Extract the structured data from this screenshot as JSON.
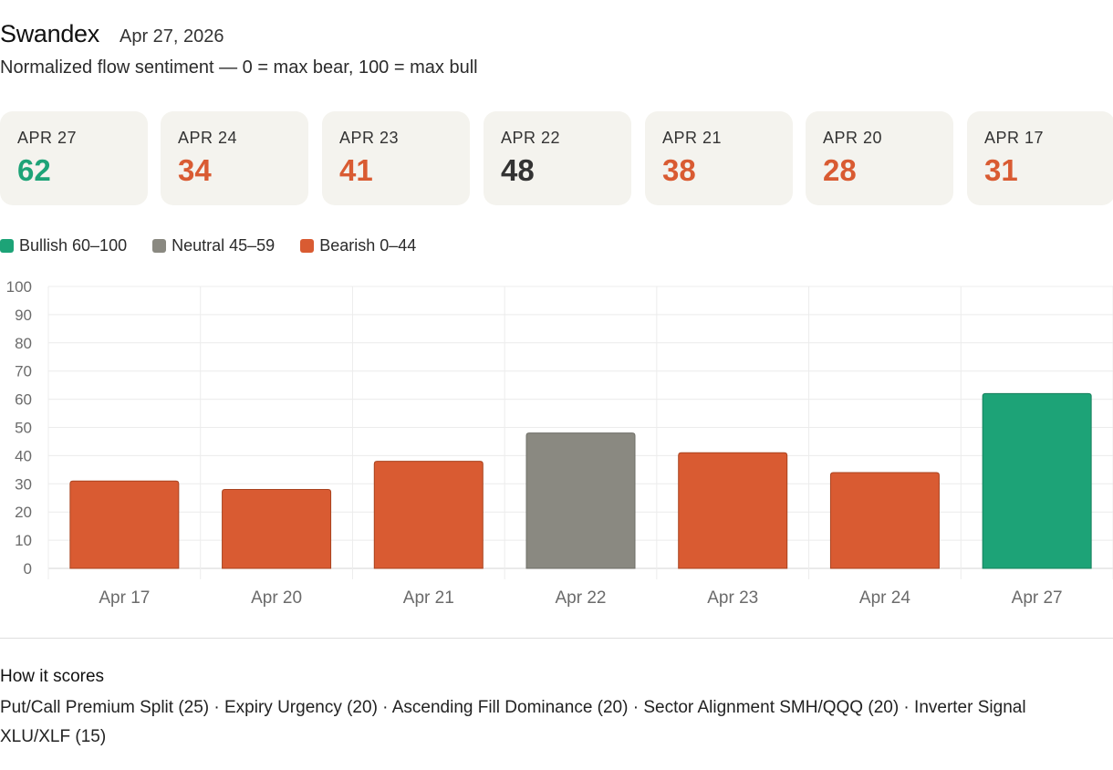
{
  "header": {
    "title": "Swandex",
    "date": "Apr 27, 2026"
  },
  "subtitle": "Normalized flow sentiment — 0 = max bear, 100 = max bull",
  "colors": {
    "bullish": "#1da377",
    "neutral": "#8a8981",
    "bearish": "#d95b32",
    "neutral_text": "#333333"
  },
  "cards": [
    {
      "label": "APR 27",
      "value": "62",
      "tone": "bullish"
    },
    {
      "label": "APR 24",
      "value": "34",
      "tone": "bearish"
    },
    {
      "label": "APR 23",
      "value": "41",
      "tone": "bearish"
    },
    {
      "label": "APR 22",
      "value": "48",
      "tone": "neutral"
    },
    {
      "label": "APR 21",
      "value": "38",
      "tone": "bearish"
    },
    {
      "label": "APR 20",
      "value": "28",
      "tone": "bearish"
    },
    {
      "label": "APR 17",
      "value": "31",
      "tone": "bearish"
    }
  ],
  "legend": [
    {
      "label": "Bullish 60–100",
      "tone": "bullish"
    },
    {
      "label": "Neutral 45–59",
      "tone": "neutral"
    },
    {
      "label": "Bearish 0–44",
      "tone": "bearish"
    }
  ],
  "chart_data": {
    "type": "bar",
    "categories": [
      "Apr 17",
      "Apr 20",
      "Apr 21",
      "Apr 22",
      "Apr 23",
      "Apr 24",
      "Apr 27"
    ],
    "values": [
      31,
      28,
      38,
      48,
      41,
      34,
      62
    ],
    "tones": [
      "bearish",
      "bearish",
      "bearish",
      "neutral",
      "bearish",
      "bearish",
      "bullish"
    ],
    "ylim": [
      0,
      100
    ],
    "yticks": [
      0,
      10,
      20,
      30,
      40,
      50,
      60,
      70,
      80,
      90,
      100
    ],
    "grid": true
  },
  "footer": {
    "title": "How it scores",
    "text": "Put/Call Premium Split (25) · Expiry Urgency (20) · Ascending Fill Dominance (20) · Sector Alignment SMH/QQQ (20) · Inverter Signal XLU/XLF (15)"
  }
}
